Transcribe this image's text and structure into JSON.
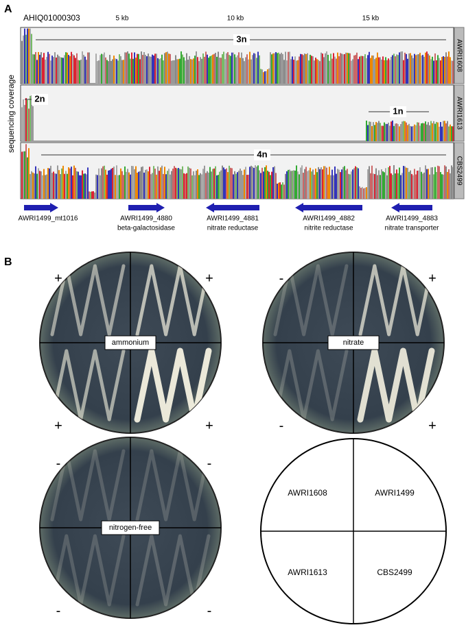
{
  "panel_a": {
    "label": "A",
    "contig": "AHIQ01000303",
    "scale": [
      "5 kb",
      "10 kb",
      "15 kb"
    ],
    "y_label": "sequencing coverage",
    "tracks": [
      {
        "name": "AWRI1608",
        "ploidy": [
          "3n"
        ]
      },
      {
        "name": "AWRI1613",
        "ploidy": [
          "2n",
          "1n"
        ]
      },
      {
        "name": "CBS2499",
        "ploidy": [
          "4n"
        ]
      }
    ],
    "genes": [
      {
        "id": "AWRI1499_mt1016"
      },
      {
        "id": "AWRI1499_4880",
        "product": "beta-galactosidase"
      },
      {
        "id": "AWRI1499_4881",
        "product": "nitrate reductase"
      },
      {
        "id": "AWRI1499_4882",
        "product": "nitrite reductase"
      },
      {
        "id": "AWRI1499_4883",
        "product": "nitrate transporter"
      }
    ]
  },
  "panel_b": {
    "label": "B",
    "plates": [
      {
        "medium": "ammonium",
        "signs": [
          "+",
          "+",
          "+",
          "+"
        ]
      },
      {
        "medium": "nitrate",
        "signs": [
          "-",
          "+",
          "-",
          "+"
        ]
      },
      {
        "medium": "nitrogen-free",
        "signs": [
          "-",
          "-",
          "-",
          "-"
        ]
      }
    ],
    "key": [
      "AWRI1608",
      "AWRI1499",
      "AWRI1613",
      "CBS2499"
    ]
  }
}
